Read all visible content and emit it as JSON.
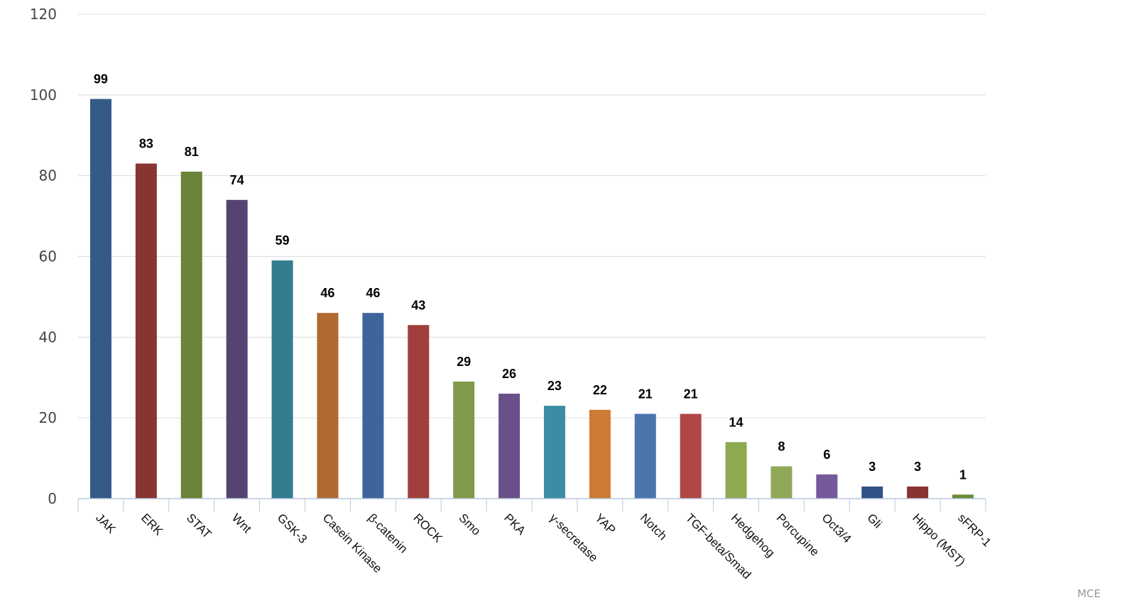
{
  "chart_data": {
    "type": "bar",
    "categories": [
      "JAK",
      "ERK",
      "STAT",
      "Wnt",
      "GSK-3",
      "Casein Kinase",
      "β-catenin",
      "ROCK",
      "Smo",
      "PKA",
      "γ-secretase",
      "YAP",
      "Notch",
      "TGF-beta/Smad",
      "Hedgehog",
      "Porcupine",
      "Oct3/4",
      "Gli",
      "Hippo (MST)",
      "sFRP-1"
    ],
    "values": [
      99,
      83,
      81,
      74,
      59,
      46,
      46,
      43,
      29,
      26,
      23,
      22,
      21,
      21,
      14,
      8,
      6,
      3,
      3,
      1
    ],
    "colors": [
      "#345a88",
      "#873533",
      "#6a8439",
      "#574372",
      "#327d8f",
      "#b06a2f",
      "#3e659b",
      "#a03f3d",
      "#809b4a",
      "#6a5088",
      "#3a8da3",
      "#cc7a35",
      "#4a75ad",
      "#b04745",
      "#8caa50",
      "#8fa85a",
      "#75599a",
      "#2f5384",
      "#883232",
      "#6a8a35"
    ],
    "ylim": [
      0,
      120
    ],
    "yticks": [
      0,
      20,
      40,
      60,
      80,
      100,
      120
    ],
    "grid": true,
    "title": "",
    "xlabel": "",
    "ylabel": ""
  },
  "credit": "MCE"
}
